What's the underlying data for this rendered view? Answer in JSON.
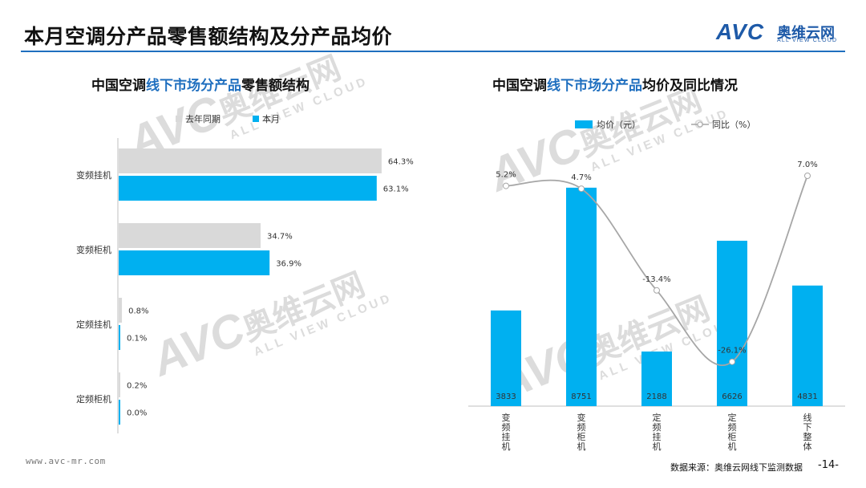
{
  "page": {
    "title": "本月空调分产品零售额结构及分产品均价",
    "logo_text": "AVC",
    "logo_cn": "奥维云网",
    "logo_en": "ALL VIEW CLOUD",
    "watermark_big": "AVC",
    "watermark_cn": "奥维云网",
    "watermark_sub": "ALL VIEW CLOUD",
    "footer_url": "www.avc-mr.com",
    "footer_source": "数据来源：奥维云网线下监测数据",
    "page_number": "-14-"
  },
  "colors": {
    "accent": "#1f6fbf",
    "bar_current": "#00b0f0",
    "bar_last_year": "#d9d9d9",
    "line": "#a6a6a6"
  },
  "chart_data": [
    {
      "type": "bar",
      "orientation": "horizontal",
      "title_prefix": "中国空调",
      "title_highlight": "线下市场分产品",
      "title_suffix": "零售额结构",
      "categories": [
        "变频挂机",
        "变频柜机",
        "定频挂机",
        "定频柜机"
      ],
      "series": [
        {
          "name": "去年同期",
          "values": [
            64.3,
            34.7,
            0.8,
            0.2
          ],
          "labels": [
            "64.3%",
            "34.7%",
            "0.8%",
            "0.2%"
          ]
        },
        {
          "name": "本月",
          "values": [
            63.1,
            36.9,
            0.1,
            0.0
          ],
          "labels": [
            "63.1%",
            "36.9%",
            "0.1%",
            "0.0%"
          ]
        }
      ],
      "unit": "%",
      "legend": "top-left"
    },
    {
      "type": "bar+line",
      "title_prefix": "中国空调",
      "title_highlight": "线下市场分产品",
      "title_suffix": "均价及同比情况",
      "categories": [
        "变频挂机",
        "变频柜机",
        "定频挂机",
        "定频柜机",
        "线下整体"
      ],
      "bar_series": {
        "name": "均价（元）",
        "values": [
          3833,
          8751,
          2188,
          6626,
          4831
        ],
        "labels": [
          "3833",
          "8751",
          "2188",
          "6626",
          "4831"
        ]
      },
      "line_series": {
        "name": "同比（%）",
        "values": [
          5.2,
          4.7,
          -13.4,
          -26.1,
          7.0
        ],
        "labels": [
          "5.2%",
          "4.7%",
          "-13.4%",
          "-26.1%",
          "7.0%"
        ]
      },
      "bar_ylim": [
        0,
        10000
      ],
      "line_ylim": [
        -30,
        10
      ],
      "legend": "top-center"
    }
  ]
}
